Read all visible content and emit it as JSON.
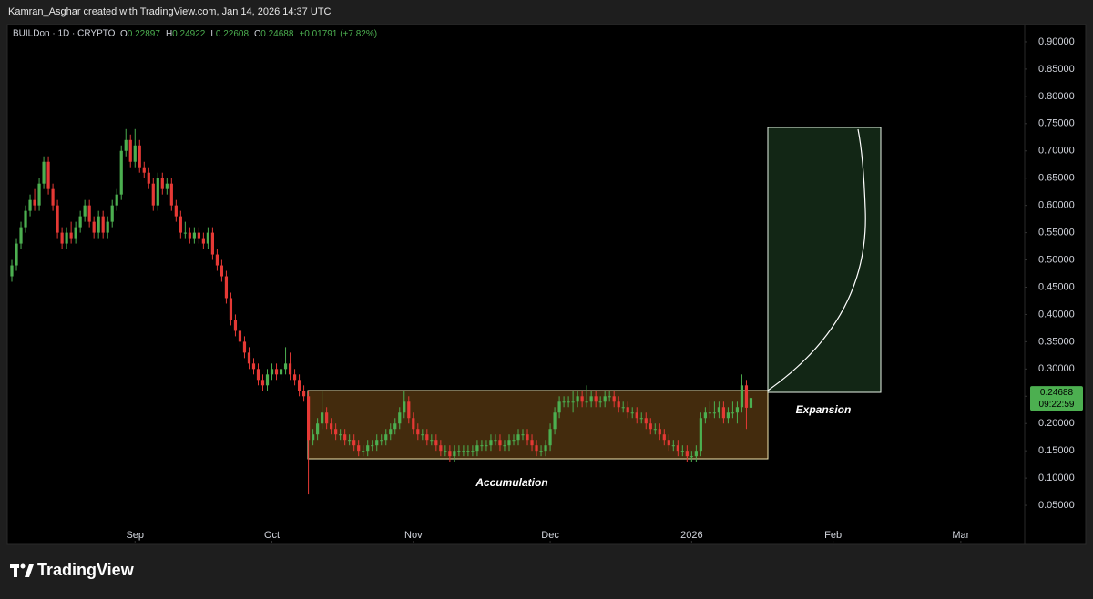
{
  "header": {
    "credit": "Kamran_Asghar created with TradingView.com, Jan 14, 2026 14:37 UTC"
  },
  "chart_data": {
    "type": "candlestick",
    "symbol": "BUILDon · 1D · CRYPTO",
    "ohlc_legend": [
      {
        "key": "O",
        "value": "0.22897"
      },
      {
        "key": "H",
        "value": "0.24922"
      },
      {
        "key": "L",
        "value": "0.22608"
      },
      {
        "key": "C",
        "value": "0.24688"
      }
    ],
    "change": "+0.01791 (+7.82%)",
    "up_color": "#4caf50",
    "down_color": "#e53935",
    "candles": [
      [
        0.47,
        0.5,
        0.46,
        0.49
      ],
      [
        0.49,
        0.54,
        0.48,
        0.53
      ],
      [
        0.53,
        0.57,
        0.52,
        0.56
      ],
      [
        0.56,
        0.6,
        0.55,
        0.59
      ],
      [
        0.59,
        0.62,
        0.58,
        0.61
      ],
      [
        0.61,
        0.63,
        0.59,
        0.6
      ],
      [
        0.6,
        0.65,
        0.59,
        0.64
      ],
      [
        0.64,
        0.69,
        0.63,
        0.68
      ],
      [
        0.68,
        0.69,
        0.62,
        0.63
      ],
      [
        0.63,
        0.64,
        0.59,
        0.6
      ],
      [
        0.6,
        0.61,
        0.54,
        0.55
      ],
      [
        0.55,
        0.56,
        0.52,
        0.53
      ],
      [
        0.53,
        0.56,
        0.52,
        0.55
      ],
      [
        0.55,
        0.57,
        0.53,
        0.54
      ],
      [
        0.54,
        0.57,
        0.53,
        0.56
      ],
      [
        0.56,
        0.59,
        0.55,
        0.58
      ],
      [
        0.58,
        0.61,
        0.57,
        0.6
      ],
      [
        0.6,
        0.61,
        0.56,
        0.57
      ],
      [
        0.57,
        0.58,
        0.54,
        0.55
      ],
      [
        0.55,
        0.59,
        0.54,
        0.58
      ],
      [
        0.58,
        0.59,
        0.54,
        0.55
      ],
      [
        0.55,
        0.58,
        0.54,
        0.57
      ],
      [
        0.57,
        0.61,
        0.56,
        0.6
      ],
      [
        0.6,
        0.63,
        0.59,
        0.62
      ],
      [
        0.62,
        0.71,
        0.61,
        0.7
      ],
      [
        0.7,
        0.74,
        0.69,
        0.72
      ],
      [
        0.72,
        0.73,
        0.67,
        0.68
      ],
      [
        0.68,
        0.74,
        0.67,
        0.71
      ],
      [
        0.71,
        0.72,
        0.66,
        0.67
      ],
      [
        0.67,
        0.68,
        0.65,
        0.66
      ],
      [
        0.66,
        0.67,
        0.63,
        0.64
      ],
      [
        0.64,
        0.65,
        0.59,
        0.6
      ],
      [
        0.6,
        0.66,
        0.59,
        0.65
      ],
      [
        0.65,
        0.66,
        0.62,
        0.63
      ],
      [
        0.63,
        0.65,
        0.62,
        0.64
      ],
      [
        0.64,
        0.65,
        0.59,
        0.6
      ],
      [
        0.6,
        0.61,
        0.57,
        0.58
      ],
      [
        0.58,
        0.59,
        0.54,
        0.55
      ],
      [
        0.55,
        0.57,
        0.54,
        0.55
      ],
      [
        0.55,
        0.56,
        0.53,
        0.54
      ],
      [
        0.54,
        0.56,
        0.53,
        0.55
      ],
      [
        0.55,
        0.56,
        0.53,
        0.54
      ],
      [
        0.54,
        0.55,
        0.52,
        0.53
      ],
      [
        0.53,
        0.56,
        0.52,
        0.55
      ],
      [
        0.55,
        0.56,
        0.5,
        0.51
      ],
      [
        0.51,
        0.52,
        0.48,
        0.49
      ],
      [
        0.49,
        0.5,
        0.46,
        0.47
      ],
      [
        0.47,
        0.48,
        0.42,
        0.43
      ],
      [
        0.43,
        0.44,
        0.38,
        0.39
      ],
      [
        0.39,
        0.4,
        0.36,
        0.37
      ],
      [
        0.37,
        0.38,
        0.34,
        0.35
      ],
      [
        0.35,
        0.36,
        0.32,
        0.33
      ],
      [
        0.33,
        0.34,
        0.3,
        0.31
      ],
      [
        0.31,
        0.32,
        0.29,
        0.3
      ],
      [
        0.3,
        0.31,
        0.27,
        0.28
      ],
      [
        0.28,
        0.29,
        0.26,
        0.27
      ],
      [
        0.27,
        0.3,
        0.26,
        0.29
      ],
      [
        0.29,
        0.31,
        0.28,
        0.3
      ],
      [
        0.3,
        0.31,
        0.28,
        0.29
      ],
      [
        0.29,
        0.32,
        0.28,
        0.3
      ],
      [
        0.3,
        0.34,
        0.29,
        0.31
      ],
      [
        0.31,
        0.33,
        0.28,
        0.29
      ],
      [
        0.29,
        0.3,
        0.27,
        0.28
      ],
      [
        0.28,
        0.29,
        0.25,
        0.26
      ],
      [
        0.26,
        0.27,
        0.24,
        0.25
      ],
      [
        0.25,
        0.26,
        0.07,
        0.17
      ],
      [
        0.17,
        0.19,
        0.16,
        0.18
      ],
      [
        0.18,
        0.21,
        0.17,
        0.2
      ],
      [
        0.2,
        0.26,
        0.19,
        0.22
      ],
      [
        0.22,
        0.23,
        0.19,
        0.2
      ],
      [
        0.2,
        0.21,
        0.18,
        0.19
      ],
      [
        0.19,
        0.2,
        0.17,
        0.18
      ],
      [
        0.18,
        0.19,
        0.17,
        0.18
      ],
      [
        0.18,
        0.19,
        0.16,
        0.17
      ],
      [
        0.17,
        0.18,
        0.16,
        0.17
      ],
      [
        0.17,
        0.18,
        0.15,
        0.16
      ],
      [
        0.16,
        0.17,
        0.14,
        0.15
      ],
      [
        0.15,
        0.16,
        0.14,
        0.15
      ],
      [
        0.15,
        0.17,
        0.14,
        0.16
      ],
      [
        0.16,
        0.17,
        0.15,
        0.16
      ],
      [
        0.16,
        0.18,
        0.15,
        0.17
      ],
      [
        0.17,
        0.18,
        0.16,
        0.17
      ],
      [
        0.17,
        0.19,
        0.16,
        0.18
      ],
      [
        0.18,
        0.2,
        0.17,
        0.19
      ],
      [
        0.19,
        0.21,
        0.18,
        0.2
      ],
      [
        0.2,
        0.23,
        0.19,
        0.22
      ],
      [
        0.22,
        0.26,
        0.21,
        0.24
      ],
      [
        0.24,
        0.25,
        0.2,
        0.21
      ],
      [
        0.21,
        0.22,
        0.18,
        0.19
      ],
      [
        0.19,
        0.2,
        0.17,
        0.18
      ],
      [
        0.18,
        0.19,
        0.17,
        0.18
      ],
      [
        0.18,
        0.19,
        0.16,
        0.17
      ],
      [
        0.17,
        0.18,
        0.16,
        0.17
      ],
      [
        0.17,
        0.18,
        0.15,
        0.16
      ],
      [
        0.16,
        0.17,
        0.14,
        0.15
      ],
      [
        0.15,
        0.16,
        0.14,
        0.15
      ],
      [
        0.15,
        0.16,
        0.13,
        0.14
      ],
      [
        0.14,
        0.16,
        0.13,
        0.15
      ],
      [
        0.15,
        0.16,
        0.14,
        0.15
      ],
      [
        0.15,
        0.16,
        0.14,
        0.15
      ],
      [
        0.15,
        0.16,
        0.14,
        0.15
      ],
      [
        0.15,
        0.16,
        0.14,
        0.15
      ],
      [
        0.15,
        0.17,
        0.14,
        0.16
      ],
      [
        0.16,
        0.17,
        0.15,
        0.16
      ],
      [
        0.16,
        0.17,
        0.15,
        0.16
      ],
      [
        0.16,
        0.18,
        0.15,
        0.17
      ],
      [
        0.17,
        0.18,
        0.16,
        0.17
      ],
      [
        0.17,
        0.18,
        0.15,
        0.16
      ],
      [
        0.16,
        0.17,
        0.15,
        0.16
      ],
      [
        0.16,
        0.18,
        0.15,
        0.17
      ],
      [
        0.17,
        0.18,
        0.16,
        0.17
      ],
      [
        0.17,
        0.19,
        0.16,
        0.18
      ],
      [
        0.18,
        0.19,
        0.17,
        0.18
      ],
      [
        0.18,
        0.19,
        0.16,
        0.17
      ],
      [
        0.17,
        0.18,
        0.15,
        0.16
      ],
      [
        0.16,
        0.17,
        0.14,
        0.15
      ],
      [
        0.15,
        0.16,
        0.14,
        0.15
      ],
      [
        0.15,
        0.17,
        0.14,
        0.16
      ],
      [
        0.16,
        0.2,
        0.15,
        0.19
      ],
      [
        0.19,
        0.23,
        0.18,
        0.22
      ],
      [
        0.22,
        0.25,
        0.21,
        0.24
      ],
      [
        0.24,
        0.25,
        0.23,
        0.24
      ],
      [
        0.24,
        0.25,
        0.23,
        0.24
      ],
      [
        0.24,
        0.26,
        0.22,
        0.24
      ],
      [
        0.24,
        0.26,
        0.23,
        0.25
      ],
      [
        0.25,
        0.26,
        0.23,
        0.24
      ],
      [
        0.24,
        0.27,
        0.23,
        0.24
      ],
      [
        0.24,
        0.26,
        0.23,
        0.25
      ],
      [
        0.25,
        0.26,
        0.23,
        0.24
      ],
      [
        0.24,
        0.25,
        0.23,
        0.24
      ],
      [
        0.24,
        0.26,
        0.23,
        0.25
      ],
      [
        0.25,
        0.26,
        0.24,
        0.25
      ],
      [
        0.25,
        0.26,
        0.23,
        0.24
      ],
      [
        0.24,
        0.25,
        0.22,
        0.23
      ],
      [
        0.23,
        0.24,
        0.22,
        0.23
      ],
      [
        0.23,
        0.24,
        0.21,
        0.22
      ],
      [
        0.22,
        0.23,
        0.21,
        0.22
      ],
      [
        0.22,
        0.23,
        0.2,
        0.21
      ],
      [
        0.21,
        0.22,
        0.2,
        0.21
      ],
      [
        0.21,
        0.22,
        0.19,
        0.2
      ],
      [
        0.2,
        0.21,
        0.18,
        0.19
      ],
      [
        0.19,
        0.2,
        0.18,
        0.19
      ],
      [
        0.19,
        0.2,
        0.17,
        0.18
      ],
      [
        0.18,
        0.19,
        0.16,
        0.17
      ],
      [
        0.17,
        0.18,
        0.15,
        0.16
      ],
      [
        0.16,
        0.17,
        0.15,
        0.16
      ],
      [
        0.16,
        0.17,
        0.14,
        0.15
      ],
      [
        0.15,
        0.16,
        0.14,
        0.15
      ],
      [
        0.15,
        0.16,
        0.13,
        0.14
      ],
      [
        0.14,
        0.15,
        0.13,
        0.14
      ],
      [
        0.14,
        0.16,
        0.13,
        0.15
      ],
      [
        0.15,
        0.22,
        0.14,
        0.21
      ],
      [
        0.21,
        0.23,
        0.2,
        0.22
      ],
      [
        0.22,
        0.24,
        0.21,
        0.22
      ],
      [
        0.22,
        0.24,
        0.21,
        0.22
      ],
      [
        0.22,
        0.24,
        0.21,
        0.23
      ],
      [
        0.23,
        0.24,
        0.2,
        0.21
      ],
      [
        0.21,
        0.23,
        0.2,
        0.22
      ],
      [
        0.22,
        0.24,
        0.21,
        0.22
      ],
      [
        0.22,
        0.24,
        0.2,
        0.23
      ],
      [
        0.23,
        0.29,
        0.22,
        0.27
      ],
      [
        0.27,
        0.28,
        0.19,
        0.22897
      ],
      [
        0.22897,
        0.24922,
        0.22608,
        0.24688
      ]
    ],
    "xlim": [
      -1,
      222
    ],
    "xticks": [
      {
        "value": 27,
        "label": "Sep"
      },
      {
        "value": 57,
        "label": "Oct"
      },
      {
        "value": 88,
        "label": "Nov"
      },
      {
        "value": 118,
        "label": "Dec"
      },
      {
        "value": 149,
        "label": "2026"
      },
      {
        "value": 180,
        "label": "Feb"
      },
      {
        "value": 208,
        "label": "Mar"
      }
    ],
    "ylim": [
      -0.02,
      0.93
    ],
    "yticks": [
      {
        "value": 0.05,
        "label": "0.05000"
      },
      {
        "value": 0.1,
        "label": "0.10000"
      },
      {
        "value": 0.15,
        "label": "0.15000"
      },
      {
        "value": 0.2,
        "label": "0.20000"
      },
      {
        "value": 0.25,
        "label": "0.25000"
      },
      {
        "value": 0.3,
        "label": "0.30000"
      },
      {
        "value": 0.35,
        "label": "0.35000"
      },
      {
        "value": 0.4,
        "label": "0.40000"
      },
      {
        "value": 0.45,
        "label": "0.45000"
      },
      {
        "value": 0.5,
        "label": "0.50000"
      },
      {
        "value": 0.55,
        "label": "0.55000"
      },
      {
        "value": 0.6,
        "label": "0.60000"
      },
      {
        "value": 0.65,
        "label": "0.65000"
      },
      {
        "value": 0.7,
        "label": "0.70000"
      },
      {
        "value": 0.75,
        "label": "0.75000"
      },
      {
        "value": 0.8,
        "label": "0.80000"
      },
      {
        "value": 0.85,
        "label": "0.85000"
      },
      {
        "value": 0.9,
        "label": "0.90000"
      }
    ],
    "annotations": [
      "Accumulation",
      "Expansion"
    ],
    "last_price": {
      "label": "0.24688",
      "countdown": "09:22:59"
    }
  },
  "footer": {
    "brand": "TradingView"
  }
}
